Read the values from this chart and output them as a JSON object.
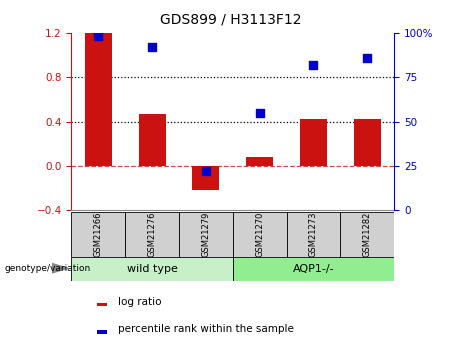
{
  "title": "GDS899 / H3113F12",
  "samples": [
    "GSM21266",
    "GSM21276",
    "GSM21279",
    "GSM21270",
    "GSM21273",
    "GSM21282"
  ],
  "log_ratio": [
    1.2,
    0.47,
    -0.22,
    0.08,
    0.42,
    0.42
  ],
  "percentile_rank": [
    98,
    92,
    22,
    55,
    82,
    86
  ],
  "bar_color": "#cc1111",
  "dot_color": "#0000cc",
  "ylim_left": [
    -0.4,
    1.2
  ],
  "ylim_right": [
    0,
    100
  ],
  "yticks_left": [
    -0.4,
    0.0,
    0.4,
    0.8,
    1.2
  ],
  "yticks_right": [
    0,
    25,
    50,
    75,
    100
  ],
  "hlines": [
    0.4,
    0.8
  ],
  "zero_line_color": "#cc1111",
  "hline_color": "#000000",
  "background_color": "#ffffff",
  "sample_box_color": "#d0d0d0",
  "wildtype_color": "#c8f0c8",
  "aqp_color": "#90ee90",
  "group_label": "genotype/variation",
  "legend_log_ratio": "log ratio",
  "legend_percentile": "percentile rank within the sample",
  "bar_width": 0.5,
  "dot_size": 28,
  "title_fontsize": 10,
  "axis_fontsize": 7.5,
  "sample_fontsize": 6,
  "group_fontsize": 8,
  "legend_fontsize": 7.5
}
